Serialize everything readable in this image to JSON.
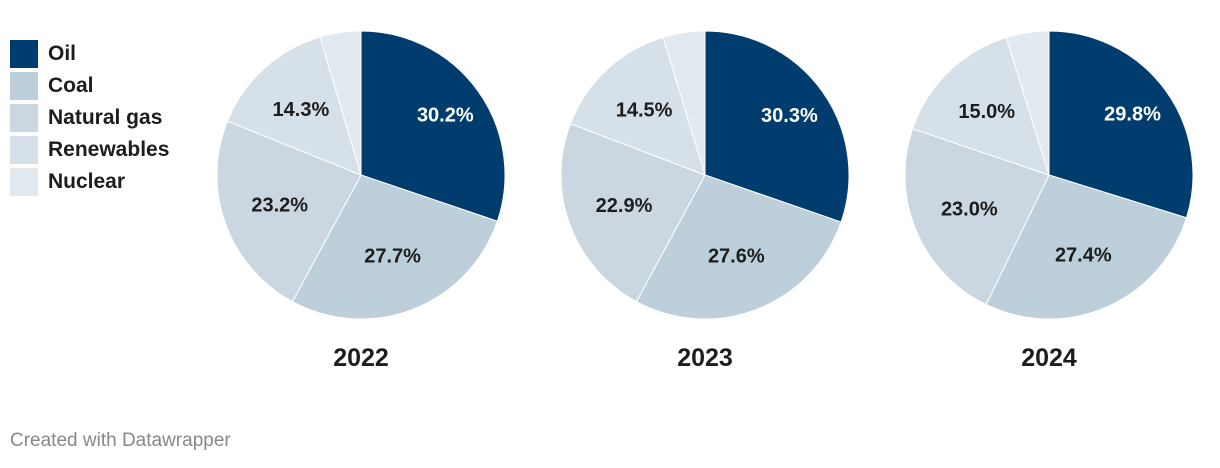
{
  "chart_data": {
    "type": "pie",
    "title": "",
    "legend": {
      "placement": "top-left",
      "entries": [
        {
          "label": "Oil",
          "color": "#003c6e"
        },
        {
          "label": "Coal",
          "color": "#bdcfdb"
        },
        {
          "label": "Natural gas",
          "color": "#cad7e0"
        },
        {
          "label": "Renewables",
          "color": "#d6e0e8"
        },
        {
          "label": "Nuclear",
          "color": "#e2e9ef"
        }
      ]
    },
    "categories": [
      "Oil",
      "Coal",
      "Natural gas",
      "Renewables",
      "Nuclear"
    ],
    "charts": [
      {
        "year": "2022",
        "values": [
          30.2,
          27.7,
          23.2,
          14.3,
          4.6
        ],
        "labels": [
          "30.2%",
          "27.7%",
          "23.2%",
          "14.3%",
          ""
        ]
      },
      {
        "year": "2023",
        "values": [
          30.3,
          27.6,
          22.9,
          14.5,
          4.7
        ],
        "labels": [
          "30.3%",
          "27.6%",
          "22.9%",
          "14.5%",
          ""
        ]
      },
      {
        "year": "2024",
        "values": [
          29.8,
          27.4,
          23.0,
          15.0,
          4.8
        ],
        "labels": [
          "29.8%",
          "27.4%",
          "23.0%",
          "15.0%",
          ""
        ]
      }
    ]
  },
  "footer": {
    "credit": "Created with Datawrapper"
  }
}
